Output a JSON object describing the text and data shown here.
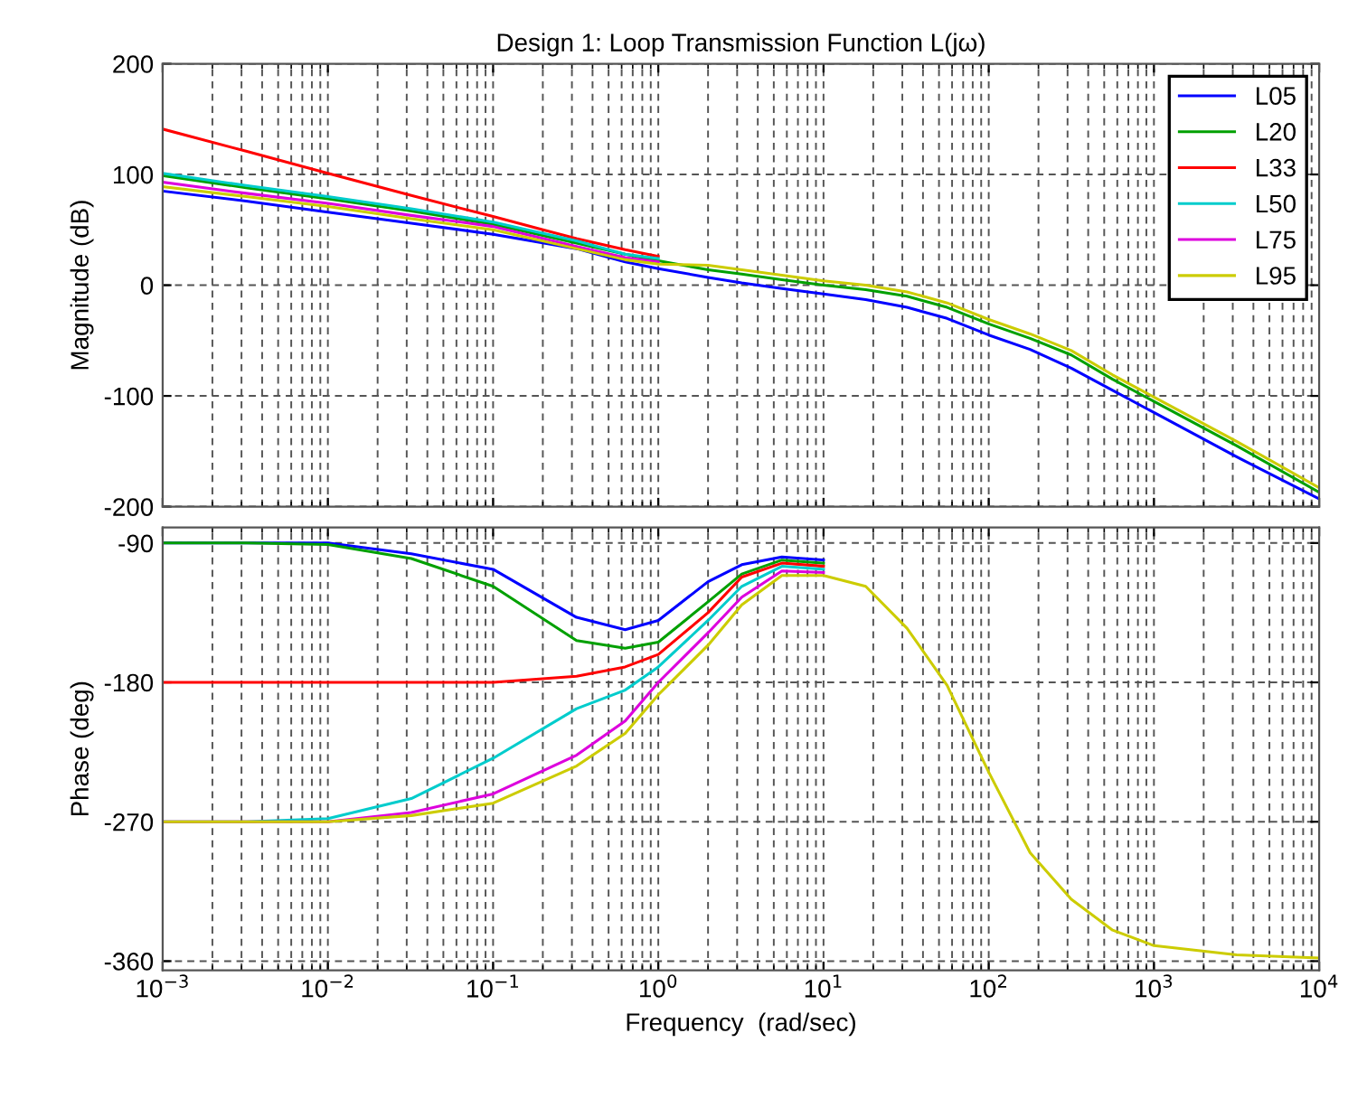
{
  "chart_data": [
    {
      "type": "line",
      "title": "Design 1: Loop Transmission Function L(jω)",
      "ylabel": "Magnitude (dB)",
      "x": [
        0.001,
        0.0032,
        0.01,
        0.032,
        0.1,
        0.32,
        0.63,
        1,
        2,
        3.2,
        5.6,
        10,
        18,
        32,
        56,
        100,
        178,
        316,
        562,
        1000,
        3162,
        10000
      ],
      "series": [
        {
          "name": "L05",
          "color": "#0000ff",
          "values": [
            85,
            76,
            66,
            56,
            46,
            33,
            21,
            15,
            7,
            2,
            -3,
            -8,
            -13,
            -20,
            -30,
            -45,
            -58,
            -75,
            -95,
            -115,
            -155,
            -193
          ]
        },
        {
          "name": "L20",
          "color": "#00a000",
          "values": [
            99,
            88,
            78,
            67,
            55,
            38,
            28,
            22,
            14,
            10,
            5,
            0,
            -4,
            -10,
            -20,
            -35,
            -48,
            -63,
            -85,
            -105,
            -145,
            -187
          ]
        },
        {
          "name": "L33",
          "color": "#ff0000",
          "values": [
            141,
            121,
            101,
            81,
            62,
            42,
            32,
            26,
            null,
            null,
            null,
            null,
            null,
            null,
            null,
            null,
            null,
            null,
            null,
            null,
            null,
            null
          ]
        },
        {
          "name": "L50",
          "color": "#00cccc",
          "values": [
            101,
            90,
            80,
            69,
            57,
            40,
            28,
            24,
            null,
            null,
            null,
            null,
            null,
            null,
            null,
            null,
            null,
            null,
            null,
            null,
            null,
            null
          ]
        },
        {
          "name": "L75",
          "color": "#dd00dd",
          "values": [
            93,
            83,
            74,
            63,
            53,
            35,
            25,
            21,
            null,
            null,
            null,
            null,
            null,
            null,
            null,
            null,
            null,
            null,
            null,
            null,
            null,
            null
          ]
        },
        {
          "name": "L95",
          "color": "#cccc00",
          "values": [
            89,
            80,
            71,
            60,
            50,
            33,
            23,
            19,
            18,
            14,
            9,
            4,
            0,
            -6,
            -16,
            -31,
            -44,
            -59,
            -81,
            -101,
            -141,
            -183
          ]
        }
      ],
      "log": "x",
      "xlim": [
        0.001,
        10000
      ],
      "ylim": [
        -200,
        200
      ],
      "yticks": [
        -200,
        -100,
        0,
        100,
        200
      ],
      "xticks": [
        0.001,
        0.01,
        0.1,
        1,
        10,
        100,
        1000,
        10000
      ],
      "tick_labels": "y",
      "grid": true,
      "legend": "top right",
      "line_style": "solid"
    },
    {
      "type": "line",
      "xlabel": "Frequency  (rad/sec)",
      "ylabel": "Phase (deg)",
      "x": [
        0.001,
        0.0032,
        0.01,
        0.032,
        0.1,
        0.32,
        0.63,
        1,
        2,
        3.2,
        5.6,
        10,
        18,
        32,
        56,
        100,
        178,
        316,
        562,
        1000,
        3162,
        10000
      ],
      "series": [
        {
          "color": "#0000ff",
          "values": [
            -90,
            -90,
            -90,
            -97,
            -107,
            -138,
            -146,
            -140,
            -115,
            -104,
            -99,
            -101,
            null,
            null,
            null,
            null,
            null,
            null,
            null,
            null,
            null,
            null
          ]
        },
        {
          "color": "#00a000",
          "values": [
            -90,
            -90,
            -91,
            -100,
            -118,
            -153,
            -158,
            -154,
            -128,
            -110,
            -101,
            -103,
            null,
            null,
            null,
            null,
            null,
            null,
            null,
            null,
            null,
            null
          ]
        },
        {
          "color": "#ff0000",
          "values": [
            -180,
            -180,
            -180,
            -180,
            -180,
            -176,
            -170,
            -162,
            -135,
            -112,
            -103,
            -105,
            null,
            null,
            null,
            null,
            null,
            null,
            null,
            null,
            null,
            null
          ]
        },
        {
          "color": "#00cccc",
          "values": [
            -270,
            -270,
            -268,
            -255,
            -229,
            -197,
            -185,
            -170,
            -140,
            -118,
            -105,
            -107,
            null,
            null,
            null,
            null,
            null,
            null,
            null,
            null,
            null,
            null
          ]
        },
        {
          "color": "#dd00dd",
          "values": [
            -270,
            -270,
            -270,
            -264,
            -252,
            -227,
            -205,
            -180,
            -148,
            -125,
            -108,
            -109,
            null,
            null,
            null,
            null,
            null,
            null,
            null,
            null,
            null,
            null
          ]
        },
        {
          "color": "#cccc00",
          "values": [
            -270,
            -270,
            -270,
            -266,
            -258,
            -234,
            -213,
            -188,
            -156,
            -130,
            -111,
            -111,
            -118,
            -145,
            -182,
            -238,
            -290,
            -320,
            -340,
            -350,
            -356,
            -358
          ]
        }
      ],
      "log": "x",
      "xlim": [
        0.001,
        10000
      ],
      "ylim": [
        -366,
        -80
      ],
      "yticks": [
        -360,
        -270,
        -180,
        -90
      ],
      "xticks": [
        {
          "value": 0.001,
          "label": "10$^{−3}$"
        },
        {
          "value": 0.01,
          "label": "10$^{−2}$"
        },
        {
          "value": 0.1,
          "label": "10$^{−1}$"
        },
        {
          "value": 1,
          "label": "10$^{0}$"
        },
        {
          "value": 10,
          "label": "10$^{1}$"
        },
        {
          "value": 100,
          "label": "10$^{2}$"
        },
        {
          "value": 1000,
          "label": "10$^{3}$"
        },
        {
          "value": 10000,
          "label": "10$^{4}$"
        }
      ],
      "grid": true,
      "line_style": "solid"
    }
  ]
}
